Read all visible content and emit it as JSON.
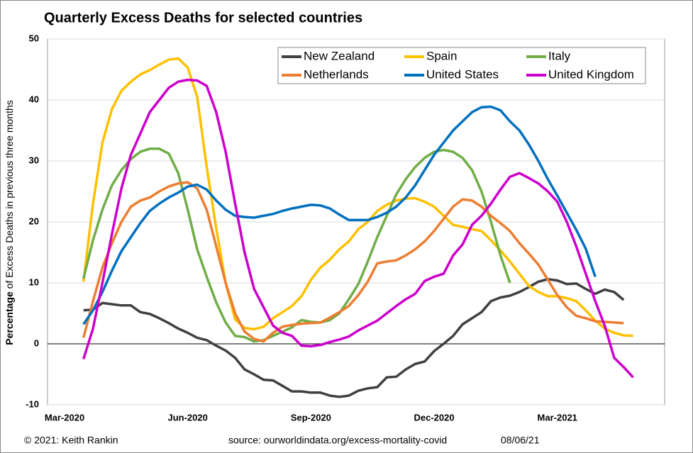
{
  "chart_data": {
    "type": "line",
    "title": "Quarterly Excess Deaths for selected countries",
    "y_label": {
      "bold": "Percentage",
      "text": "of Excess Deaths in previous three months"
    },
    "footer": {
      "credit": "© 2021: Keith Rankin",
      "source": "source:  ourworldindata.org/excess-mortality-covid",
      "date": "08/06/21"
    },
    "categories": [
      "Mar-2020",
      null,
      null,
      null,
      null,
      null,
      null,
      null,
      null,
      null,
      null,
      null,
      null,
      "Jun-2020",
      null,
      null,
      null,
      null,
      null,
      null,
      null,
      null,
      null,
      null,
      null,
      null,
      "Sep-2020",
      null,
      null,
      null,
      null,
      null,
      null,
      null,
      null,
      null,
      null,
      null,
      null,
      "Dec-2020",
      null,
      null,
      null,
      null,
      null,
      null,
      null,
      null,
      null,
      null,
      null,
      null,
      "Mar-2021",
      null,
      null,
      null,
      null,
      null,
      null,
      null,
      null
    ],
    "ylim": [
      -10,
      50
    ],
    "yticks": [
      -10,
      0,
      10,
      20,
      30,
      40,
      50
    ],
    "grid": true,
    "series": [
      {
        "name": "New Zealand",
        "color": "#404040",
        "values": [
          null,
          null,
          5.5,
          5.6,
          6.7,
          6.5,
          6.3,
          6.3,
          5.2,
          4.9,
          4.2,
          3.4,
          2.5,
          1.8,
          1.0,
          0.6,
          -0.3,
          -1.1,
          -2.3,
          -4.2,
          -5.0,
          -5.9,
          -6.0,
          -6.9,
          -7.8,
          -7.8,
          -8.0,
          -8.0,
          -8.5,
          -8.7,
          -8.5,
          -7.7,
          -7.3,
          -7.1,
          -5.5,
          -5.4,
          -4.2,
          -3.3,
          -2.9,
          -1.2,
          0,
          1.3,
          3.2,
          4.2,
          5.2,
          7.0,
          7.6,
          7.9,
          8.5,
          9.3,
          10.2,
          10.6,
          10.4,
          9.8,
          9.9,
          9.0,
          8.2,
          8.9,
          8.5,
          7.2,
          null
        ]
      },
      {
        "name": "Spain",
        "color": "#ffc000",
        "values": [
          null,
          null,
          10.2,
          23,
          33,
          38.5,
          41.5,
          43,
          44.2,
          44.9,
          45.8,
          46.6,
          46.8,
          45.3,
          40.5,
          29,
          19,
          10,
          4,
          2.6,
          2.4,
          2.8,
          4.2,
          5.2,
          6.2,
          7.8,
          10.5,
          12.5,
          13.8,
          15.5,
          16.8,
          18.8,
          20,
          21.8,
          22.8,
          23.5,
          23.8,
          23.9,
          23.3,
          22.5,
          21,
          19.5,
          19.2,
          18.8,
          18.5,
          17,
          15.3,
          13.5,
          11.5,
          9.5,
          8.5,
          7.8,
          7.8,
          7.5,
          7.0,
          5.5,
          3.8,
          2.5,
          1.8,
          1.4,
          1.3
        ]
      },
      {
        "name": "Italy",
        "color": "#70ad47",
        "values": [
          null,
          null,
          10.7,
          17,
          22,
          26,
          28.5,
          30.3,
          31.5,
          32,
          32,
          31.2,
          28,
          22,
          15.5,
          11,
          6.8,
          3.5,
          1.3,
          1.1,
          0.4,
          0.6,
          1.3,
          2,
          2.7,
          3.9,
          3.6,
          3.5,
          3.9,
          5,
          7.3,
          9.8,
          13.5,
          17.5,
          21,
          24.5,
          27,
          29,
          30.5,
          31.5,
          31.8,
          31.5,
          30.5,
          28.5,
          25,
          20,
          14.5,
          10,
          null,
          null,
          null,
          null,
          null,
          null,
          null,
          null,
          null,
          null,
          null,
          null,
          null
        ]
      },
      {
        "name": "Netherlands",
        "color": "#ed7d31",
        "values": [
          null,
          null,
          1,
          7,
          12.5,
          16.5,
          20,
          22.5,
          23.5,
          24,
          25,
          25.8,
          26.3,
          26.5,
          25.5,
          22,
          16,
          10,
          5,
          2,
          0.8,
          0.4,
          1.8,
          2.8,
          3.1,
          3.3,
          3.4,
          3.5,
          4.3,
          5.2,
          6.2,
          8,
          10.2,
          13.2,
          13.5,
          13.7,
          14.5,
          15.5,
          16.8,
          18.5,
          20.5,
          22.5,
          23.7,
          23.5,
          22.5,
          21,
          19.8,
          18.5,
          16.5,
          14.8,
          13,
          10.5,
          8,
          6,
          4.6,
          4.2,
          3.7,
          3.6,
          3.5,
          3.4,
          null
        ]
      },
      {
        "name": "United States",
        "color": "#0070c0",
        "values": [
          null,
          null,
          3.2,
          5.5,
          8.5,
          12,
          15.2,
          17.5,
          19.8,
          21.8,
          23,
          24,
          24.8,
          25.8,
          26.1,
          25.3,
          23.5,
          22,
          21,
          20.8,
          20.7,
          21,
          21.3,
          21.8,
          22.2,
          22.5,
          22.8,
          22.7,
          22.2,
          21.2,
          20.3,
          20.3,
          20.3,
          20.8,
          21.5,
          22.5,
          24,
          26,
          28.5,
          31,
          33,
          35,
          36.5,
          38,
          38.8,
          38.9,
          38.3,
          36.5,
          35,
          32.7,
          30,
          27,
          24.3,
          21.5,
          18.7,
          15.6,
          11,
          null,
          null,
          null,
          null
        ]
      },
      {
        "name": "United Kingdom",
        "color": "#cc00cc",
        "values": [
          null,
          null,
          -2.5,
          2.5,
          10,
          18,
          25.5,
          31,
          34.5,
          38,
          40,
          42,
          43,
          43.3,
          43.2,
          42.3,
          38,
          31.5,
          23,
          15,
          9,
          6,
          3,
          1.8,
          1.3,
          -0.3,
          -0.4,
          -0.2,
          0.3,
          0.7,
          1.2,
          2.2,
          3,
          3.8,
          5,
          6.2,
          7.3,
          8.2,
          10.3,
          11,
          11.5,
          14.5,
          16.3,
          19.5,
          21,
          23,
          25.3,
          27.4,
          28,
          27.2,
          26.3,
          25,
          23.3,
          20,
          16,
          11.5,
          7,
          3,
          -2.3,
          -3.8,
          -5.5
        ]
      }
    ]
  }
}
